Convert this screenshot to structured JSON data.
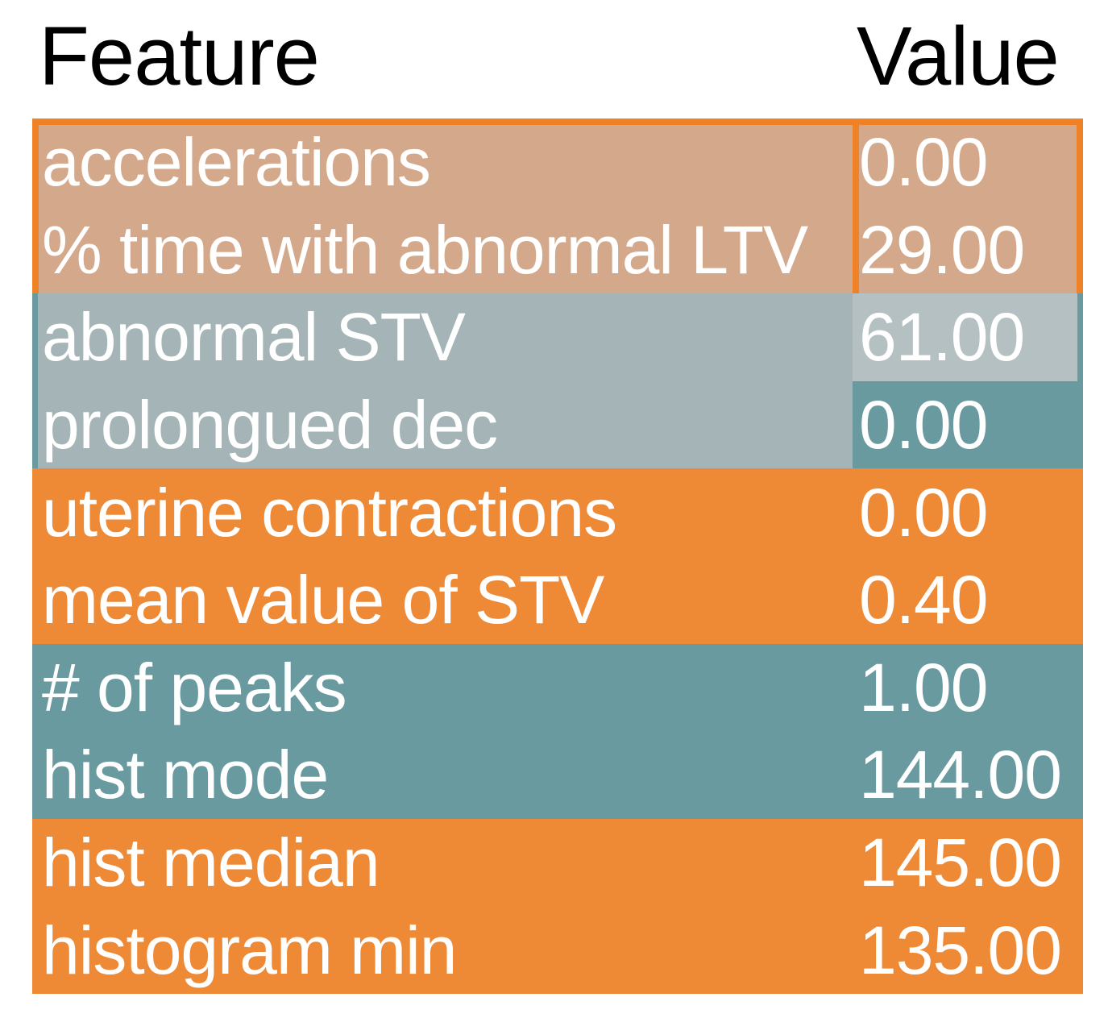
{
  "table": {
    "columns": [
      "Feature",
      "Value"
    ],
    "rows": [
      {
        "feature": "accelerations",
        "value": "0.00"
      },
      {
        "feature": "% time with abnormal LTV",
        "value": "29.00"
      },
      {
        "feature": "abnormal STV",
        "value": "61.00"
      },
      {
        "feature": "prolongued dec",
        "value": "0.00"
      },
      {
        "feature": "uterine contractions",
        "value": "0.00"
      },
      {
        "feature": "mean value of STV",
        "value": "0.40"
      },
      {
        "feature": "# of peaks",
        "value": "1.00"
      },
      {
        "feature": "hist mode",
        "value": "144.00"
      },
      {
        "feature": "hist median",
        "value": "145.00"
      },
      {
        "feature": "histogram min",
        "value": "135.00"
      }
    ]
  },
  "chart_data": {
    "type": "table",
    "title": "",
    "columns": [
      "Feature",
      "Value"
    ],
    "rows": [
      {
        "feature": "accelerations",
        "value": 0.0,
        "row_color": "tan",
        "value_cell_color": "tan"
      },
      {
        "feature": "% time with abnormal LTV",
        "value": 29.0,
        "row_color": "tan",
        "value_cell_color": "tan"
      },
      {
        "feature": "abnormal STV",
        "value": 61.0,
        "row_color": "muted_teal",
        "value_cell_color": "light_teal"
      },
      {
        "feature": "prolongued dec",
        "value": 0.0,
        "row_color": "muted_teal",
        "value_cell_color": "solid_teal"
      },
      {
        "feature": "uterine contractions",
        "value": 0.0,
        "row_color": "solid_orange",
        "value_cell_color": "solid_orange"
      },
      {
        "feature": "mean value of STV",
        "value": 0.4,
        "row_color": "solid_orange",
        "value_cell_color": "solid_orange"
      },
      {
        "feature": "# of peaks",
        "value": 1.0,
        "row_color": "solid_teal",
        "value_cell_color": "solid_teal"
      },
      {
        "feature": "hist mode",
        "value": 144.0,
        "row_color": "solid_teal",
        "value_cell_color": "solid_teal"
      },
      {
        "feature": "hist median",
        "value": 145.0,
        "row_color": "solid_orange",
        "value_cell_color": "solid_orange"
      },
      {
        "feature": "histogram min",
        "value": 135.0,
        "row_color": "solid_orange",
        "value_cell_color": "solid_orange"
      }
    ],
    "highlighted_block": "rows 1-2 outlined in orange",
    "palette": {
      "solid_orange": "#ee8936",
      "orange_border": "#ef8227",
      "tan": "#d4a98b",
      "solid_teal": "#699aa0",
      "muted_teal": "#a5b4b6",
      "light_teal": "#b4c0c1",
      "header_text": "#000000",
      "row_text": "#ffffff"
    },
    "layout": {
      "grid": false,
      "legend": false,
      "header_row_background": "white"
    }
  }
}
